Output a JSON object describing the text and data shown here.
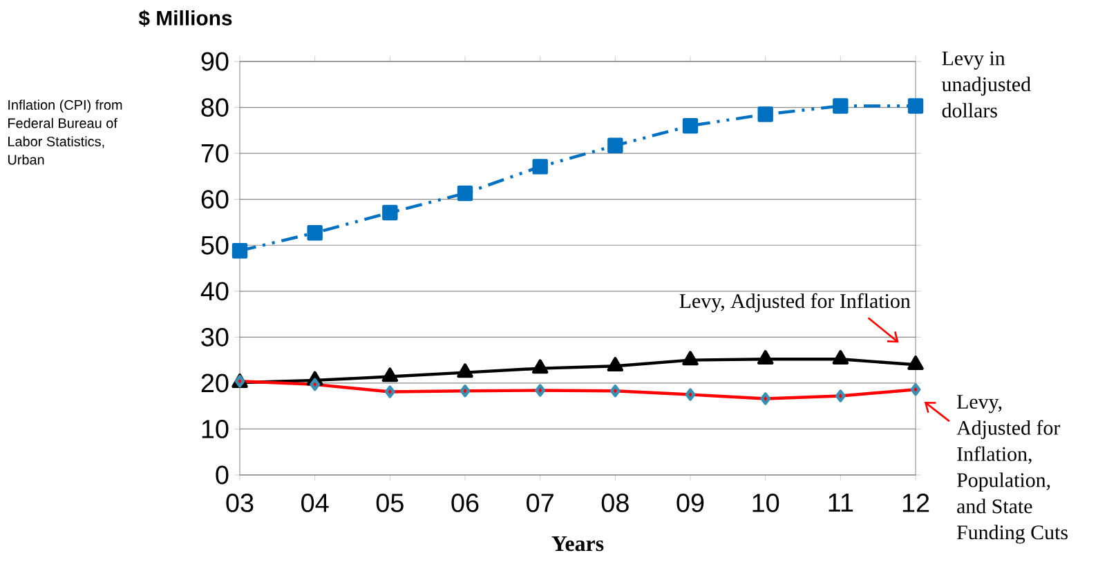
{
  "chart_data": {
    "type": "line",
    "ylabel": "$ Millions",
    "xlabel": "Years",
    "categories": [
      "03",
      "04",
      "05",
      "06",
      "07",
      "08",
      "09",
      "10",
      "11",
      "12"
    ],
    "ylim": [
      0,
      90
    ],
    "yticks": [
      0,
      10,
      20,
      30,
      40,
      50,
      60,
      70,
      80,
      90
    ],
    "grid": "y",
    "annotations": [
      "Inflation (CPI) from Federal Bureau of Labor Statistics, Urban"
    ],
    "series": [
      {
        "name": "Levy in unadjusted dollars",
        "color": "#0070c0",
        "marker": "square",
        "line_style": "dashed",
        "values": [
          48.8,
          52.7,
          57.1,
          61.3,
          67.1,
          71.7,
          76.0,
          78.5,
          80.3,
          80.3
        ]
      },
      {
        "name": "Levy, Adjusted for Inflation",
        "color": "#000000",
        "marker": "triangle",
        "line_style": "solid",
        "values": [
          20.1,
          20.6,
          21.4,
          22.3,
          23.2,
          23.7,
          25.0,
          25.2,
          25.2,
          24.0
        ]
      },
      {
        "name": "Levy, Adjusted for Inflation, Population, and State Funding Cuts",
        "color": "#ff0000",
        "marker": "diamond",
        "line_style": "solid",
        "values": [
          20.4,
          19.7,
          18.1,
          18.3,
          18.4,
          18.3,
          17.5,
          16.6,
          17.2,
          18.6
        ]
      }
    ]
  }
}
